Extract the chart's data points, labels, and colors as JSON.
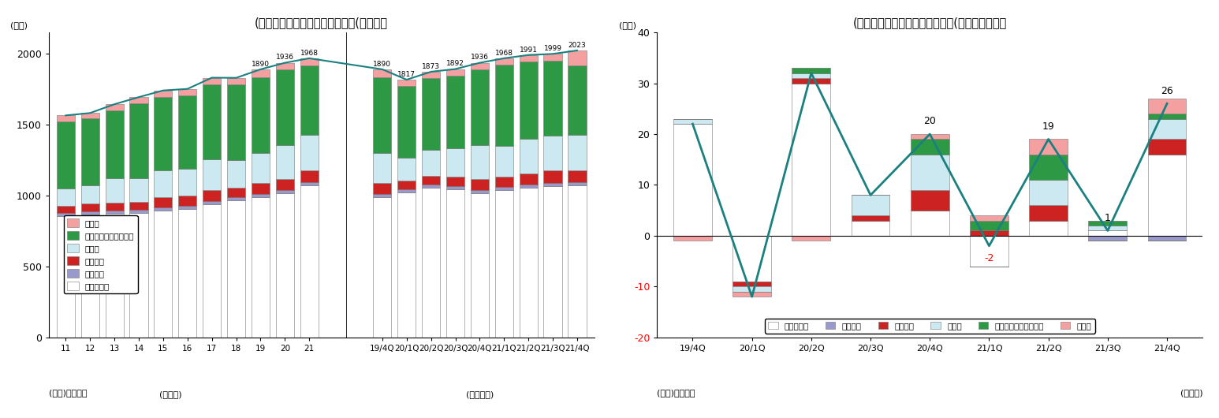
{
  "chart1": {
    "title": "(図表１）　家計の金融資産残高(グロス）",
    "ylabel": "(兆円)",
    "xlabel_annual": "(暦年末)",
    "xlabel_quarterly": "(四半期末)",
    "source": "(資料)日本銀行",
    "categories_annual": [
      "11",
      "12",
      "13",
      "14",
      "15",
      "16",
      "17",
      "18",
      "19",
      "20",
      "21"
    ],
    "categories_quarterly": [
      "19/4Q",
      "20/1Q",
      "20/2Q",
      "20/3Q",
      "20/4Q",
      "21/1Q",
      "21/2Q",
      "21/3Q",
      "21/4Q"
    ],
    "labels_annual": [
      null,
      null,
      null,
      null,
      null,
      null,
      null,
      null,
      "1890",
      "1936",
      "1968"
    ],
    "labels_quarterly": [
      "1890",
      "1817",
      "1873",
      "1892",
      "1936",
      "1968",
      "1991",
      "1999",
      "2023"
    ],
    "line_values_annual": [
      1565,
      1582,
      1644,
      1694,
      1741,
      1752,
      1831,
      1830,
      1890,
      1936,
      1968
    ],
    "line_values_quarterly": [
      1890,
      1817,
      1873,
      1892,
      1936,
      1968,
      1991,
      1999,
      2023
    ],
    "stacks_annual": {
      "cash": [
        855,
        864,
        871,
        877,
        896,
        905,
        939,
        964,
        990,
        1017,
        1072
      ],
      "bonds": [
        25,
        24,
        22,
        22,
        22,
        22,
        22,
        22,
        22,
        22,
        22
      ],
      "funds": [
        50,
        54,
        56,
        55,
        72,
        71,
        75,
        68,
        74,
        79,
        84
      ],
      "stocks": [
        120,
        130,
        175,
        168,
        185,
        190,
        222,
        195,
        213,
        240,
        250
      ],
      "insurance": [
        470,
        470,
        476,
        527,
        521,
        518,
        526,
        534,
        537,
        529,
        487
      ],
      "other": [
        45,
        40,
        44,
        45,
        45,
        46,
        47,
        47,
        54,
        49,
        53
      ]
    },
    "stacks_quarterly": {
      "cash": [
        990,
        1022,
        1053,
        1046,
        1017,
        1037,
        1053,
        1066,
        1072
      ],
      "bonds": [
        22,
        22,
        22,
        22,
        22,
        22,
        22,
        22,
        22
      ],
      "funds": [
        74,
        62,
        63,
        67,
        79,
        72,
        82,
        87,
        84
      ],
      "stocks": [
        213,
        160,
        186,
        200,
        240,
        221,
        242,
        245,
        250
      ],
      "insurance": [
        537,
        506,
        504,
        512,
        529,
        570,
        546,
        530,
        487
      ],
      "other": [
        54,
        45,
        45,
        45,
        49,
        46,
        46,
        49,
        108
      ]
    },
    "legend_labels": {
      "cash": "現金・預金",
      "bonds": "債務証券",
      "funds": "投資信託",
      "stocks": "株式等",
      "insurance": "保険・年金・定額保証",
      "other": "その他"
    },
    "colors": {
      "cash": "#ffffff",
      "bonds": "#9999cc",
      "funds": "#cc2222",
      "stocks": "#cce8f0",
      "insurance": "#2d9944",
      "other": "#f5a0a0"
    },
    "line_color": "#1a8080",
    "ylim": [
      0,
      2150
    ],
    "yticks": [
      0,
      500,
      1000,
      1500,
      2000
    ]
  },
  "chart2": {
    "title": "(図表２）　家計の金融資産増減(フローの動き）",
    "ylabel": "(兆円)",
    "xlabel": "(四半期)",
    "source": "(資料)日本銀行",
    "categories": [
      "19/4Q",
      "20/1Q",
      "20/2Q",
      "20/3Q",
      "20/4Q",
      "21/1Q",
      "21/2Q",
      "21/3Q",
      "21/4Q"
    ],
    "line_values": [
      22,
      -12,
      32,
      8,
      20,
      -2,
      19,
      1,
      26
    ],
    "annotations": [
      {
        "xi": 4,
        "yi": 20,
        "label": "20",
        "color": "black"
      },
      {
        "xi": 5,
        "yi": -2,
        "label": "-2",
        "color": "red"
      },
      {
        "xi": 6,
        "yi": 19,
        "label": "19",
        "color": "black"
      },
      {
        "xi": 7,
        "yi": 1,
        "label": "1",
        "color": "black"
      },
      {
        "xi": 8,
        "yi": 26,
        "label": "26",
        "color": "black"
      }
    ],
    "stacks": {
      "cash": [
        22,
        -9,
        30,
        3,
        5,
        -6,
        3,
        1,
        16
      ],
      "bonds": [
        0,
        0,
        0,
        0,
        0,
        0,
        0,
        -1,
        -1
      ],
      "funds": [
        0,
        -1,
        1,
        1,
        4,
        1,
        3,
        0,
        3
      ],
      "stocks": [
        1,
        -1,
        1,
        4,
        7,
        0,
        5,
        1,
        4
      ],
      "insurance": [
        0,
        0,
        1,
        0,
        3,
        2,
        5,
        1,
        1
      ],
      "other": [
        -1,
        -1,
        -1,
        0,
        1,
        1,
        3,
        0,
        3
      ]
    },
    "legend_labels": {
      "cash": "現金・預金",
      "bonds": "債務証券",
      "funds": "投資信託",
      "stocks": "株式等",
      "insurance": "保険・年金・定額保証",
      "other": "その他"
    },
    "colors": {
      "cash": "#ffffff",
      "bonds": "#9999cc",
      "funds": "#cc2222",
      "stocks": "#cce8f0",
      "insurance": "#2d9944",
      "other": "#f5a0a0"
    },
    "line_color": "#1a8080",
    "ylim": [
      -20,
      40
    ],
    "yticks": [
      -20,
      -10,
      0,
      10,
      20,
      30,
      40
    ],
    "red_yticks": [
      "-20",
      "-10"
    ]
  }
}
